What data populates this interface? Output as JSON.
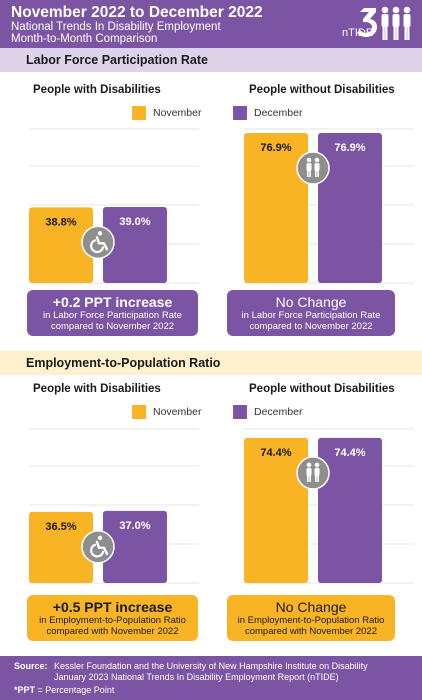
{
  "header": {
    "title": "November 2022 to December 2022",
    "subtitle_line1": "National Trends In Disability Employment",
    "subtitle_line2": "Month-to-Month Comparison",
    "logo_text": "nTIDE"
  },
  "colors": {
    "purple": "#7b55a3",
    "yellow": "#f8b425",
    "lavender": "#ded4ea",
    "cream": "#fdf0cc",
    "icon_gray": "#8e8e8e"
  },
  "legend": {
    "november": "November",
    "december": "December"
  },
  "sections": [
    {
      "title": "Labor Force Participation Rate",
      "with_title": "People with Disabilities",
      "without_title": "People without Disabilities",
      "with_summary": {
        "headline": "+0.2 PPT increase",
        "line1": "in Labor Force Participation Rate",
        "line2": "compared to November 2022"
      },
      "without_summary": {
        "headline": "No Change",
        "line1": "in Labor Force Participation Rate",
        "line2": "compared to November 2022"
      }
    },
    {
      "title": "Employment-to-Population Ratio",
      "with_title": "People with Disabilities",
      "without_title": "People without Disabilities",
      "with_summary": {
        "headline": "+0.5 PPT increase",
        "line1": "in Employment-to-Population Ratio",
        "line2": "compared with November 2022"
      },
      "without_summary": {
        "headline": "No Change",
        "line1": "in Employment-to-Population Ratio",
        "line2": "compared with November 2022"
      }
    }
  ],
  "chart_data": [
    {
      "type": "bar",
      "title": "Labor Force Participation Rate",
      "group": "People with Disabilities",
      "categories": [
        "November",
        "December"
      ],
      "values": [
        38.8,
        39.0
      ],
      "labels": [
        "38.8%",
        "39.0%"
      ],
      "ylim": [
        0,
        100
      ]
    },
    {
      "type": "bar",
      "title": "Labor Force Participation Rate",
      "group": "People without Disabilities",
      "categories": [
        "November",
        "December"
      ],
      "values": [
        76.9,
        76.9
      ],
      "labels": [
        "76.9%",
        "76.9%"
      ],
      "ylim": [
        0,
        100
      ]
    },
    {
      "type": "bar",
      "title": "Employment-to-Population Ratio",
      "group": "People with Disabilities",
      "categories": [
        "November",
        "December"
      ],
      "values": [
        36.5,
        37.0
      ],
      "labels": [
        "36.5%",
        "37.0%"
      ],
      "ylim": [
        0,
        100
      ]
    },
    {
      "type": "bar",
      "title": "Employment-to-Population Ratio",
      "group": "People without Disabilities",
      "categories": [
        "November",
        "December"
      ],
      "values": [
        74.4,
        74.4
      ],
      "labels": [
        "74.4%",
        "74.4%"
      ],
      "ylim": [
        0,
        100
      ]
    }
  ],
  "footer": {
    "source_label": "Source:",
    "source_line1": "Kessler Foundation and the University of New Hampshire Institute on Disability",
    "source_line2": "January 2023 National Trends In Disability Employment Report (nTIDE)",
    "ppt_abbr": "*PPT",
    "ppt_def": " = Percentage Point"
  }
}
